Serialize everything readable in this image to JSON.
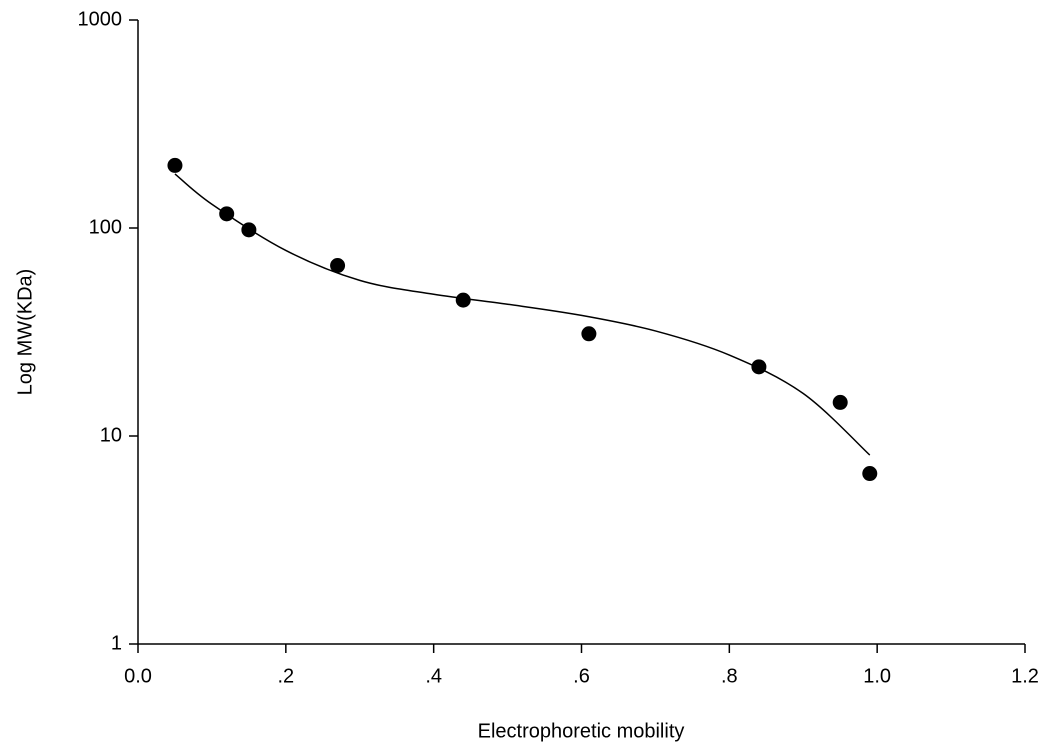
{
  "chart_data": {
    "type": "scatter",
    "x_label": "Electrophoretic mobility",
    "y_label": "Log MW(KDa)",
    "x": [
      0.05,
      0.12,
      0.15,
      0.27,
      0.44,
      0.61,
      0.84,
      0.95,
      0.99
    ],
    "values": [
      200,
      117,
      98,
      66,
      45,
      31,
      21.5,
      14.5,
      6.6
    ],
    "color": "#000000",
    "fit": {
      "x": [
        0.05,
        0.1,
        0.2,
        0.3,
        0.4,
        0.5,
        0.6,
        0.7,
        0.8,
        0.9,
        0.99
      ],
      "values": [
        182,
        130,
        78,
        56,
        48,
        43,
        38,
        32,
        24.5,
        16,
        8.1
      ],
      "color": "#000000"
    },
    "xlim": [
      0,
      1.2
    ],
    "xticks": [
      {
        "value": 0,
        "label": "0.0"
      },
      {
        "value": 0.2,
        "label": ".2"
      },
      {
        "value": 0.4,
        "label": ".4"
      },
      {
        "value": 0.6,
        "label": ".6"
      },
      {
        "value": 0.8,
        "label": ".8"
      },
      {
        "value": 1.0,
        "label": "1.0"
      },
      {
        "value": 1.2,
        "label": "1.2"
      }
    ],
    "ylim": [
      1,
      1000
    ],
    "yticks": [
      1,
      10,
      100,
      1000
    ],
    "y_log": true,
    "grid": false
  }
}
